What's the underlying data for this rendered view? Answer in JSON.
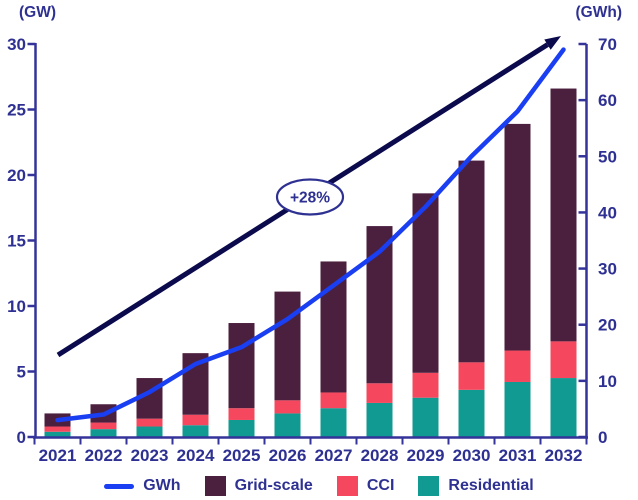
{
  "axis_units": {
    "left": "(GW)",
    "right": "(GWh)"
  },
  "annotation": {
    "text": "+28%"
  },
  "colors": {
    "navy_text": "#2e3192",
    "axis": "#333399",
    "arrow": "#0a0a4d",
    "line": "#1a3ef2",
    "grid_scale": "#4b1f3e",
    "cci": "#f5485e",
    "residential": "#119a92",
    "annotation_fill": "#ffffff"
  },
  "legend": [
    {
      "label": "GWh",
      "type": "line",
      "color": "#1a3ef2"
    },
    {
      "label": "Grid-scale",
      "type": "box",
      "color": "#4b1f3e"
    },
    {
      "label": "CCI",
      "type": "box",
      "color": "#f5485e"
    },
    {
      "label": "Residential",
      "type": "box",
      "color": "#119a92"
    }
  ],
  "chart_data": {
    "type": "bar",
    "subtype": "stacked-bar-with-line",
    "title": "",
    "categories": [
      "2021",
      "2022",
      "2023",
      "2024",
      "2025",
      "2026",
      "2027",
      "2028",
      "2029",
      "2030",
      "2031",
      "2032"
    ],
    "series": [
      {
        "name": "Residential",
        "axis": "left",
        "kind": "bar",
        "color": "#119a92",
        "values": [
          0.4,
          0.6,
          0.8,
          0.9,
          1.3,
          1.8,
          2.2,
          2.6,
          3.0,
          3.6,
          4.2,
          4.5
        ]
      },
      {
        "name": "CCI",
        "axis": "left",
        "kind": "bar",
        "color": "#f5485e",
        "values": [
          0.4,
          0.5,
          0.6,
          0.8,
          0.9,
          1.0,
          1.2,
          1.5,
          1.9,
          2.1,
          2.4,
          2.8
        ]
      },
      {
        "name": "Grid-scale",
        "axis": "left",
        "kind": "bar",
        "color": "#4b1f3e",
        "values": [
          1.0,
          1.4,
          3.1,
          4.7,
          6.5,
          8.3,
          10.0,
          12.0,
          13.7,
          15.4,
          17.3,
          19.3
        ]
      },
      {
        "name": "GWh",
        "axis": "right",
        "kind": "line",
        "color": "#1a3ef2",
        "values": [
          3,
          4,
          8,
          13,
          16,
          21,
          27,
          33,
          41,
          50,
          58,
          69
        ]
      }
    ],
    "bar_totals_gw": [
      1.8,
      2.5,
      4.5,
      6.4,
      8.7,
      11.1,
      13.4,
      16.1,
      18.6,
      21.1,
      23.9,
      26.6
    ],
    "axes": {
      "left": {
        "unit": "(GW)",
        "min": 0,
        "max": 30,
        "ticks": [
          0,
          5,
          10,
          15,
          20,
          25,
          30
        ]
      },
      "right": {
        "unit": "(GWh)",
        "min": 0,
        "max": 70,
        "ticks": [
          0,
          10,
          20,
          30,
          40,
          50,
          60,
          70
        ]
      }
    },
    "annotations": [
      {
        "text": "+28%",
        "shape": "ellipse-on-arrow"
      }
    ],
    "legend_position": "bottom",
    "grid": false
  }
}
